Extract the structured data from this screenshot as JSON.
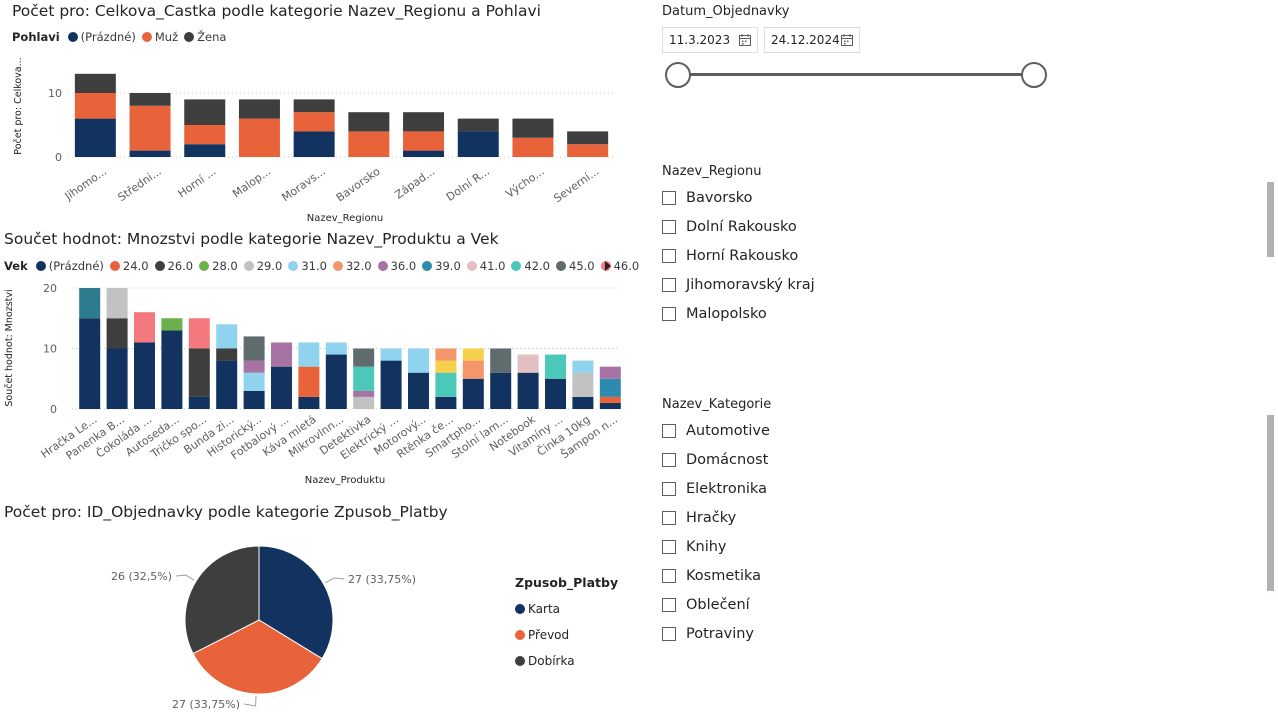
{
  "chart1": {
    "title": "Počet pro: Celkova_Castka podle kategorie Nazev_Regionu a Pohlavi",
    "legend_title": "Pohlavi",
    "legend": [
      {
        "name": "(Prázdné)",
        "color": "#12335F"
      },
      {
        "name": "Muž",
        "color": "#E8633A"
      },
      {
        "name": "Žena",
        "color": "#3E3E3E"
      }
    ],
    "ylabel": "Počet pro: Celkova...",
    "xlabel": "Nazev_Regionu",
    "yticks": [
      "0",
      "10"
    ]
  },
  "chart2": {
    "title": "Součet hodnot: Mnozstvi podle kategorie Nazev_Produktu a Vek",
    "legend_title": "Vek",
    "legend": [
      {
        "name": "(Prázdné)",
        "color": "#12335F"
      },
      {
        "name": "24.0",
        "color": "#E8633A"
      },
      {
        "name": "26.0",
        "color": "#3E3E3E"
      },
      {
        "name": "28.0",
        "color": "#6AB04C"
      },
      {
        "name": "29.0",
        "color": "#C2C2C2"
      },
      {
        "name": "31.0",
        "color": "#8FD3EF"
      },
      {
        "name": "32.0",
        "color": "#F4956A"
      },
      {
        "name": "36.0",
        "color": "#A673A4"
      },
      {
        "name": "39.0",
        "color": "#2E8BB0"
      },
      {
        "name": "41.0",
        "color": "#E3BFC3"
      },
      {
        "name": "42.0",
        "color": "#4BC8B9"
      },
      {
        "name": "45.0",
        "color": "#5F6B6D"
      },
      {
        "name": "46.0",
        "color": "#F4797E"
      }
    ],
    "ylabel": "Součet hodnot: Mnozstvi",
    "xlabel": "Nazev_Produktu",
    "yticks": [
      "0",
      "10",
      "20"
    ]
  },
  "chart3": {
    "title": "Počet pro: ID_Objednavky podle kategorie Zpusob_Platby",
    "legend_title": "Zpusob_Platby"
  },
  "chart_data": [
    {
      "type": "bar",
      "stacked": true,
      "categories": [
        "Jihomo...",
        "Středni...",
        "Horní ...",
        "Malop...",
        "Moravs...",
        "Bavorsko",
        "Západ...",
        "Dolní R...",
        "Výcho...",
        "Severní..."
      ],
      "series": [
        {
          "name": "(Prázdné)",
          "color": "#12335F",
          "values": [
            6,
            1,
            2,
            0,
            4,
            0,
            1,
            4,
            0,
            0
          ]
        },
        {
          "name": "Muž",
          "color": "#E8633A",
          "values": [
            4,
            7,
            3,
            6,
            3,
            4,
            3,
            0,
            3,
            2
          ]
        },
        {
          "name": "Žena",
          "color": "#3E3E3E",
          "values": [
            3,
            2,
            4,
            3,
            2,
            3,
            3,
            2,
            3,
            2
          ]
        }
      ],
      "ylim": [
        0,
        15
      ],
      "grid": true,
      "legend_position": "top-left"
    },
    {
      "type": "bar",
      "stacked": true,
      "categories": [
        "Hračka Le...",
        "Panenka B...",
        "Čokoláda ...",
        "Autoseda...",
        "Tričko spo...",
        "Bunda zi...",
        "Historický...",
        "Fotbalový ...",
        "Káva mletá",
        "Mikrovlnn...",
        "Detektivka",
        "Elektrický ...",
        "Motorový...",
        "Rtěnka če...",
        "Smartpho...",
        "Stolní lam...",
        "Notebook",
        "Vitamíny ...",
        "Činka 10kg",
        "Šampon n..."
      ],
      "segments": [
        [
          {
            "s": "(Prázdné)",
            "v": 15
          },
          {
            "s": "39.0",
            "v": 5,
            "color": "#2C7B8E"
          }
        ],
        [
          {
            "s": "(Prázdné)",
            "v": 10
          },
          {
            "s": "26.0",
            "v": 5
          },
          {
            "s": "29.0",
            "v": 5
          }
        ],
        [
          {
            "s": "(Prázdné)",
            "v": 11
          },
          {
            "s": "46.0",
            "v": 5
          }
        ],
        [
          {
            "s": "(Prázdné)",
            "v": 13
          },
          {
            "s": "28.0",
            "v": 2
          }
        ],
        [
          {
            "s": "(Prázdné)",
            "v": 2
          },
          {
            "s": "26.0",
            "v": 8
          },
          {
            "s": "46.0",
            "v": 5
          }
        ],
        [
          {
            "s": "(Prázdné)",
            "v": 8
          },
          {
            "s": "26.0",
            "v": 2
          },
          {
            "s": "31.0",
            "v": 4
          }
        ],
        [
          {
            "s": "(Prázdné)",
            "v": 3
          },
          {
            "s": "31.0",
            "v": 3
          },
          {
            "s": "36.0",
            "v": 2
          },
          {
            "s": "45.0",
            "v": 4
          }
        ],
        [
          {
            "s": "(Prázdné)",
            "v": 7
          },
          {
            "s": "36.0",
            "v": 4
          }
        ],
        [
          {
            "s": "(Prázdné)",
            "v": 2
          },
          {
            "s": "24.0",
            "v": 5
          },
          {
            "s": "31.0",
            "v": 4
          }
        ],
        [
          {
            "s": "(Prázdné)",
            "v": 9
          },
          {
            "s": "31.0",
            "v": 2
          }
        ],
        [
          {
            "s": "29.0",
            "v": 2
          },
          {
            "s": "36.0",
            "v": 1
          },
          {
            "s": "42.0",
            "v": 4
          },
          {
            "s": "45.0",
            "v": 3
          }
        ],
        [
          {
            "s": "(Prázdné)",
            "v": 8
          },
          {
            "s": "31.0",
            "v": 2
          }
        ],
        [
          {
            "s": "(Prázdné)",
            "v": 6
          },
          {
            "s": "31.0",
            "v": 4
          }
        ],
        [
          {
            "s": "(Prázdné)",
            "v": 2
          },
          {
            "s": "42.0",
            "v": 4
          },
          {
            "s": "yellow",
            "v": 2,
            "color": "#F6D04D"
          },
          {
            "s": "32.0",
            "v": 2
          }
        ],
        [
          {
            "s": "(Prázdné)",
            "v": 5
          },
          {
            "s": "32.0",
            "v": 3
          },
          {
            "s": "yellow",
            "v": 2,
            "color": "#F6D04D"
          }
        ],
        [
          {
            "s": "(Prázdné)",
            "v": 6
          },
          {
            "s": "45.0",
            "v": 4
          }
        ],
        [
          {
            "s": "(Prázdné)",
            "v": 6
          },
          {
            "s": "41.0",
            "v": 3
          }
        ],
        [
          {
            "s": "(Prázdné)",
            "v": 5
          },
          {
            "s": "42.0",
            "v": 4
          }
        ],
        [
          {
            "s": "(Prázdné)",
            "v": 2
          },
          {
            "s": "29.0",
            "v": 4
          },
          {
            "s": "31.0",
            "v": 2
          }
        ],
        [
          {
            "s": "(Prázdné)",
            "v": 1
          },
          {
            "s": "24.0",
            "v": 1
          },
          {
            "s": "39.0",
            "v": 3
          },
          {
            "s": "36.0",
            "v": 2
          }
        ]
      ],
      "ylim": [
        0,
        20
      ],
      "grid": true,
      "legend_position": "top-left"
    },
    {
      "type": "pie",
      "slices": [
        {
          "name": "Karta",
          "value": 27,
          "label": "27 (33,75%)",
          "color": "#12335F"
        },
        {
          "name": "Převod",
          "value": 27,
          "label": "27 (33,75%)",
          "color": "#E8633A"
        },
        {
          "name": "Dobírka",
          "value": 26,
          "label": "26 (32,5%)",
          "color": "#3E3E3E"
        }
      ],
      "legend_position": "right"
    }
  ],
  "slicer_date": {
    "title": "Datum_Objednavky",
    "from": "11.3.2023",
    "to": "24.12.2024"
  },
  "slicer_region": {
    "title": "Nazev_Regionu",
    "items": [
      "Bavorsko",
      "Dolní Rakousko",
      "Horní Rakousko",
      "Jihomoravský kraj",
      "Malopolsko"
    ]
  },
  "slicer_category": {
    "title": "Nazev_Kategorie",
    "items": [
      "Automotive",
      "Domácnost",
      "Elektronika",
      "Hračky",
      "Knihy",
      "Kosmetika",
      "Oblečení",
      "Potraviny"
    ]
  }
}
